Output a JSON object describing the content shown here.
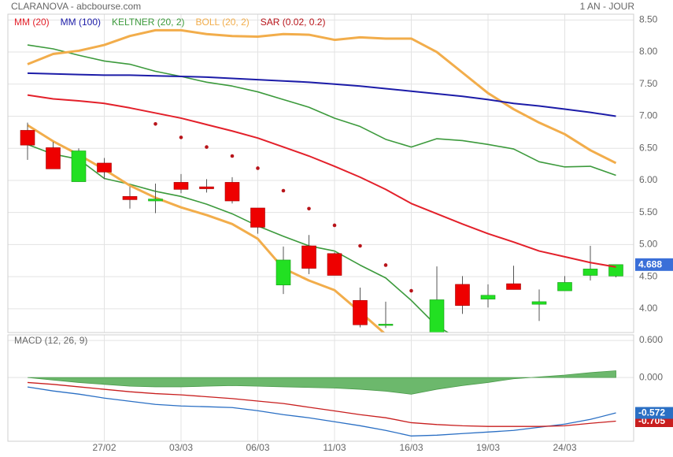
{
  "header": {
    "title": "CLARANOVA - abcbourse.com",
    "period": "1 AN - JOUR"
  },
  "chart_data": [
    {
      "type": "candlestick",
      "open": [
        6.78,
        6.51,
        5.98,
        6.27,
        5.75,
        5.68,
        5.97,
        5.9,
        5.97,
        5.57,
        4.37,
        4.98,
        4.86,
        4.13,
        3.74,
        null,
        3.55,
        4.38,
        4.15,
        4.39,
        4.07,
        4.28,
        4.52,
        4.51
      ],
      "high": [
        6.9,
        6.6,
        6.5,
        6.35,
        5.9,
        5.95,
        6.1,
        6.02,
        6.05,
        5.57,
        4.97,
        5.15,
        4.88,
        4.33,
        4.11,
        null,
        4.66,
        4.51,
        4.38,
        4.67,
        4.3,
        4.51,
        4.98,
        4.69
      ],
      "low": [
        6.32,
        6.18,
        5.98,
        6.02,
        5.56,
        5.49,
        5.8,
        5.81,
        5.64,
        5.17,
        4.23,
        4.54,
        4.52,
        3.71,
        3.7,
        null,
        3.5,
        3.92,
        4.02,
        4.3,
        3.81,
        4.28,
        4.44,
        4.49
      ],
      "close": [
        6.55,
        6.18,
        6.46,
        6.13,
        5.7,
        5.71,
        5.86,
        5.87,
        5.68,
        5.27,
        4.76,
        4.63,
        4.52,
        3.75,
        3.76,
        null,
        4.14,
        4.05,
        4.21,
        4.3,
        4.11,
        4.41,
        4.62,
        4.688
      ],
      "up_color": "#22e022",
      "down_color": "#ee0000",
      "last_color": "#3a6fd8",
      "series": [
        {
          "name": "MM (20)",
          "color": "#e3202a",
          "kind": "line",
          "values": [
            7.33,
            7.27,
            7.24,
            7.2,
            7.13,
            7.05,
            6.97,
            6.87,
            6.77,
            6.66,
            6.52,
            6.38,
            6.22,
            6.05,
            5.86,
            5.64,
            5.48,
            5.32,
            5.17,
            5.04,
            4.9,
            4.81,
            4.72,
            4.65
          ]
        },
        {
          "name": "MM (100)",
          "color": "#1c1ca8",
          "kind": "line",
          "values": [
            7.67,
            7.66,
            7.65,
            7.64,
            7.64,
            7.63,
            7.62,
            7.61,
            7.59,
            7.57,
            7.55,
            7.53,
            7.5,
            7.47,
            7.43,
            7.39,
            7.35,
            7.31,
            7.26,
            7.2,
            7.16,
            7.11,
            7.06,
            7.0
          ]
        },
        {
          "name": "KELTNER (20, 2)",
          "color": "#3c9a3c",
          "kind": "band",
          "upper": [
            8.11,
            8.05,
            7.95,
            7.86,
            7.81,
            7.7,
            7.62,
            7.53,
            7.47,
            7.38,
            7.26,
            7.14,
            6.97,
            6.84,
            6.64,
            6.52,
            6.65,
            6.62,
            6.56,
            6.49,
            6.29,
            6.21,
            6.22,
            6.08
          ],
          "lower": [
            6.56,
            6.41,
            6.33,
            6.03,
            5.94,
            5.83,
            5.75,
            5.63,
            5.48,
            5.29,
            5.13,
            4.98,
            4.9,
            4.68,
            4.48,
            4.13,
            3.73,
            3.5,
            null,
            null,
            null,
            null,
            null,
            null
          ]
        },
        {
          "name": "BOLL (20, 2)",
          "color": "#f2ad4b",
          "kind": "band",
          "upper": [
            7.81,
            7.97,
            8.02,
            8.11,
            8.25,
            8.34,
            8.34,
            8.28,
            8.25,
            8.24,
            8.28,
            8.27,
            8.19,
            8.23,
            8.21,
            8.21,
            8.0,
            7.68,
            7.36,
            7.11,
            6.9,
            6.72,
            6.47,
            6.27
          ],
          "lower": [
            6.86,
            6.61,
            6.4,
            6.17,
            5.92,
            5.73,
            5.58,
            5.46,
            5.32,
            5.09,
            4.63,
            4.44,
            4.29,
            3.95,
            3.6,
            null,
            null,
            null,
            null,
            null,
            null,
            null,
            null,
            null
          ]
        },
        {
          "name": "SAR (0.02, 0.2)",
          "color": "#b8141a",
          "kind": "dots",
          "values": [
            null,
            null,
            null,
            null,
            null,
            6.88,
            6.67,
            6.52,
            6.38,
            6.19,
            5.84,
            5.56,
            5.3,
            4.98,
            4.68,
            4.28,
            null,
            null,
            null,
            null,
            null,
            null,
            null,
            null
          ]
        }
      ],
      "ylim": [
        3.63,
        8.59
      ],
      "yticks": [
        {
          "value": 4,
          "label": "4.00"
        },
        {
          "value": 4.5,
          "label": "4.50"
        },
        {
          "value": 5,
          "label": "5.00"
        },
        {
          "value": 5.5,
          "label": "5.50"
        },
        {
          "value": 6,
          "label": "6.00"
        },
        {
          "value": 6.5,
          "label": "6.50"
        },
        {
          "value": 7,
          "label": "7.00"
        },
        {
          "value": 7.5,
          "label": "7.50"
        },
        {
          "value": 8,
          "label": "8.00"
        },
        {
          "value": 8.5,
          "label": "8.50"
        }
      ],
      "grid": true
    },
    {
      "type": "macd",
      "title": "MACD (12, 26, 9)",
      "categories": [
        null,
        null,
        null,
        "27/02",
        null,
        null,
        "03/03",
        null,
        null,
        "06/03",
        null,
        null,
        "11/03",
        null,
        null,
        "16/03",
        null,
        null,
        "19/03",
        null,
        null,
        "24/03",
        null,
        null
      ],
      "histogram": {
        "color": "#6cb86c",
        "values": [
          0,
          -0.04,
          -0.08,
          -0.11,
          -0.14,
          -0.15,
          -0.15,
          -0.14,
          -0.13,
          -0.14,
          -0.15,
          -0.16,
          -0.17,
          -0.19,
          -0.22,
          -0.27,
          -0.19,
          -0.13,
          -0.08,
          -0.02,
          0.01,
          0.04,
          0.08,
          0.11
        ]
      },
      "series": [
        {
          "color": "#2a6fc4",
          "values": [
            -0.153,
            -0.217,
            -0.268,
            -0.332,
            -0.383,
            -0.434,
            -0.46,
            -0.472,
            -0.485,
            -0.536,
            -0.6,
            -0.651,
            -0.715,
            -0.779,
            -0.855,
            -0.945,
            -0.932,
            -0.906,
            -0.881,
            -0.855,
            -0.804,
            -0.753,
            -0.677,
            -0.572
          ]
        },
        {
          "color": "#c81e1e",
          "values": [
            -0.08,
            -0.11,
            -0.15,
            -0.19,
            -0.23,
            -0.26,
            -0.28,
            -0.31,
            -0.34,
            -0.38,
            -0.42,
            -0.48,
            -0.54,
            -0.6,
            -0.65,
            -0.73,
            -0.76,
            -0.78,
            -0.79,
            -0.79,
            -0.79,
            -0.78,
            -0.74,
            -0.705
          ]
        }
      ],
      "ylim": [
        -1.03,
        0.69
      ],
      "yticks": [
        {
          "value": 0.6,
          "label": "0.600"
        },
        {
          "value": 0,
          "label": "0.000"
        }
      ],
      "grid": true
    }
  ]
}
